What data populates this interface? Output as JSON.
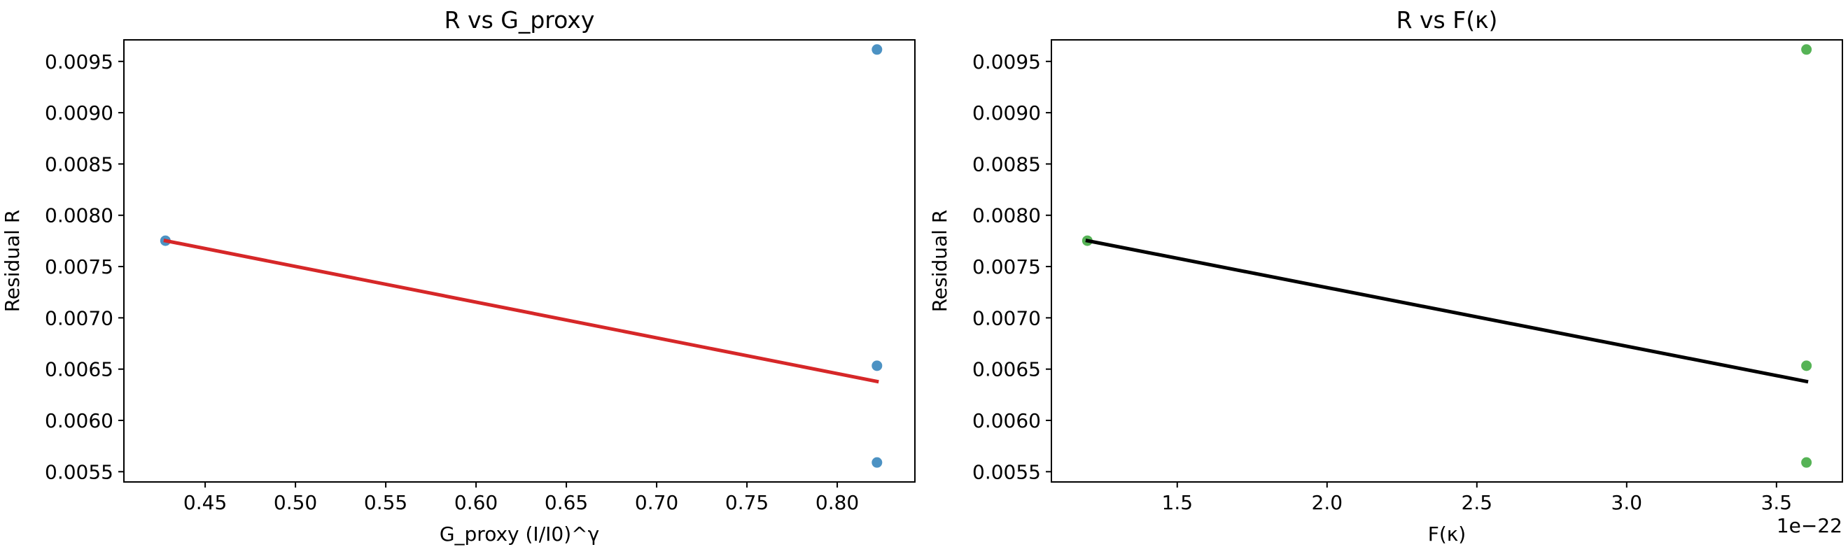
{
  "chart_data": [
    {
      "type": "scatter",
      "title": "R vs G_proxy",
      "xlabel": "G_proxy (I/I0)^γ",
      "ylabel": "Residual R",
      "xlim": [
        0.405,
        0.843
      ],
      "ylim": [
        0.0054,
        0.00971
      ],
      "x_ticks": [
        0.45,
        0.5,
        0.55,
        0.6,
        0.65,
        0.7,
        0.75,
        0.8
      ],
      "x_tick_labels": [
        "0.45",
        "0.50",
        "0.55",
        "0.60",
        "0.65",
        "0.70",
        "0.75",
        "0.80"
      ],
      "x_offset_label": "",
      "y_ticks": [
        0.0055,
        0.006,
        0.0065,
        0.007,
        0.0075,
        0.008,
        0.0085,
        0.009,
        0.0095
      ],
      "y_tick_labels": [
        "0.0055",
        "0.0060",
        "0.0065",
        "0.0070",
        "0.0075",
        "0.0080",
        "0.0085",
        "0.0090",
        "0.0095"
      ],
      "points": {
        "color": "#1f77b4",
        "x": [
          0.428,
          0.822,
          0.822,
          0.822
        ],
        "y": [
          0.007752,
          0.009616,
          0.006533,
          0.00559
        ]
      },
      "fit_line": {
        "color": "#d62728",
        "x": [
          0.428,
          0.822
        ],
        "y": [
          0.007752,
          0.00638
        ]
      }
    },
    {
      "type": "scatter",
      "title": "R vs F(κ)",
      "xlabel": "F(κ)",
      "ylabel": "Residual R",
      "xlim": [
        1.08,
        3.72
      ],
      "ylim": [
        0.0054,
        0.00971
      ],
      "x_ticks": [
        1.5,
        2.0,
        2.5,
        3.0,
        3.5
      ],
      "x_tick_labels": [
        "1.5",
        "2.0",
        "2.5",
        "3.0",
        "3.5"
      ],
      "x_offset_label": "1e−22",
      "y_ticks": [
        0.0055,
        0.006,
        0.0065,
        0.007,
        0.0075,
        0.008,
        0.0085,
        0.009,
        0.0095
      ],
      "y_tick_labels": [
        "0.0055",
        "0.0060",
        "0.0065",
        "0.0070",
        "0.0075",
        "0.0080",
        "0.0085",
        "0.0090",
        "0.0095"
      ],
      "points": {
        "color": "#2ca02c",
        "x": [
          1.2,
          3.6,
          3.6,
          3.6
        ],
        "y": [
          0.007752,
          0.009616,
          0.006533,
          0.00559
        ]
      },
      "fit_line": {
        "color": "#000000",
        "x": [
          1.2,
          3.6
        ],
        "y": [
          0.007752,
          0.00638
        ]
      }
    }
  ]
}
